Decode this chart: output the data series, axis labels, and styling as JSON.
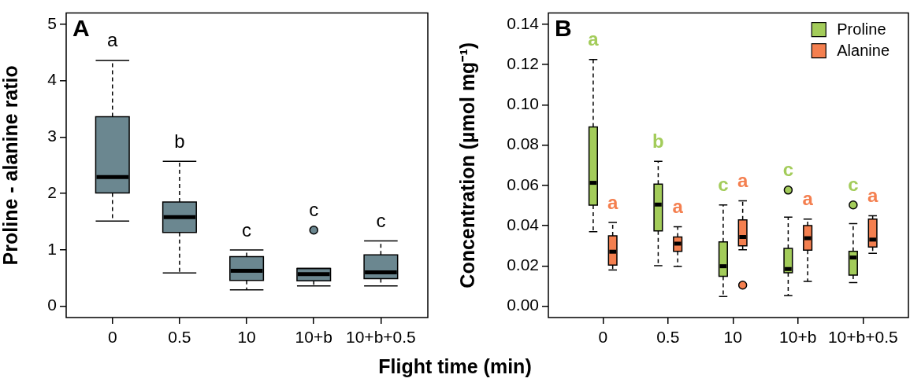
{
  "chart_data": [
    {
      "type": "box",
      "title": "A",
      "xlabel": "Flight time (min)",
      "ylabel": "Proline - alanine ratio",
      "categories": [
        "0",
        "0.5",
        "10",
        "10+b",
        "10+b+0.5"
      ],
      "color": "#6b8790",
      "ylim": [
        -0.2,
        5.2
      ],
      "yticks": [
        0,
        1,
        2,
        3,
        4,
        5
      ],
      "boxes": [
        {
          "low": 1.51,
          "q1": 2.01,
          "median": 2.29,
          "q3": 3.36,
          "high": 4.36
        },
        {
          "low": 0.59,
          "q1": 1.31,
          "median": 1.58,
          "q3": 1.85,
          "high": 2.57
        },
        {
          "low": 0.29,
          "q1": 0.46,
          "median": 0.63,
          "q3": 0.88,
          "high": 1.0
        },
        {
          "low": 0.36,
          "q1": 0.45,
          "median": 0.57,
          "q3": 0.67,
          "high": 0.67,
          "outliers": [
            1.35
          ]
        },
        {
          "low": 0.36,
          "q1": 0.49,
          "median": 0.6,
          "q3": 0.91,
          "high": 1.16
        }
      ],
      "annotations": [
        "a",
        "b",
        "c",
        "c",
        "c"
      ]
    },
    {
      "type": "box",
      "title": "B",
      "ylabel": "Concentration (µmol mg⁻¹)",
      "categories": [
        "0",
        "0.5",
        "10",
        "10+b",
        "10+b+0.5"
      ],
      "ylim": [
        -0.0056,
        0.1456
      ],
      "yticks": [
        {
          "value": 0,
          "label": "0.00"
        },
        {
          "value": 0.02,
          "label": "0.02"
        },
        {
          "value": 0.04,
          "label": "0.04"
        },
        {
          "value": 0.06,
          "label": "0.06"
        },
        {
          "value": 0.08,
          "label": "0.08"
        },
        {
          "value": 0.1,
          "label": "0.10"
        },
        {
          "value": 0.12,
          "label": "0.12"
        },
        {
          "value": 0.14,
          "label": "0.14"
        }
      ],
      "legend": "top right",
      "series": [
        {
          "name": "Proline",
          "color": "#a3cc5a",
          "boxes": [
            {
              "low": 0.037,
              "q1": 0.0502,
              "median": 0.0613,
              "q3": 0.089,
              "high": 0.1225
            },
            {
              "low": 0.0202,
              "q1": 0.0374,
              "median": 0.0505,
              "q3": 0.0607,
              "high": 0.072
            },
            {
              "low": 0.0048,
              "q1": 0.0149,
              "median": 0.0199,
              "q3": 0.032,
              "high": 0.0503
            },
            {
              "low": 0.0053,
              "q1": 0.0166,
              "median": 0.0185,
              "q3": 0.0287,
              "high": 0.0443,
              "outliers": [
                0.0577
              ]
            },
            {
              "low": 0.0118,
              "q1": 0.0155,
              "median": 0.0242,
              "q3": 0.0273,
              "high": 0.041,
              "outliers": [
                0.0503
              ]
            }
          ]
        },
        {
          "name": "Alanine",
          "color": "#f47f4f",
          "boxes": [
            {
              "low": 0.018,
              "q1": 0.0205,
              "median": 0.0271,
              "q3": 0.035,
              "high": 0.0416
            },
            {
              "low": 0.0198,
              "q1": 0.0273,
              "median": 0.0311,
              "q3": 0.0344,
              "high": 0.0395
            },
            {
              "low": 0.0281,
              "q1": 0.03,
              "median": 0.0344,
              "q3": 0.0429,
              "high": 0.0524,
              "outliers": [
                0.0105
              ]
            },
            {
              "low": 0.0124,
              "q1": 0.0279,
              "median": 0.0338,
              "q3": 0.0401,
              "high": 0.0433
            },
            {
              "low": 0.0263,
              "q1": 0.0294,
              "median": 0.0331,
              "q3": 0.0433,
              "high": 0.0449
            }
          ]
        }
      ],
      "annotations": [
        "a",
        "a",
        "b",
        "a",
        "c",
        "a",
        "c",
        "a",
        "c",
        "a"
      ]
    }
  ]
}
